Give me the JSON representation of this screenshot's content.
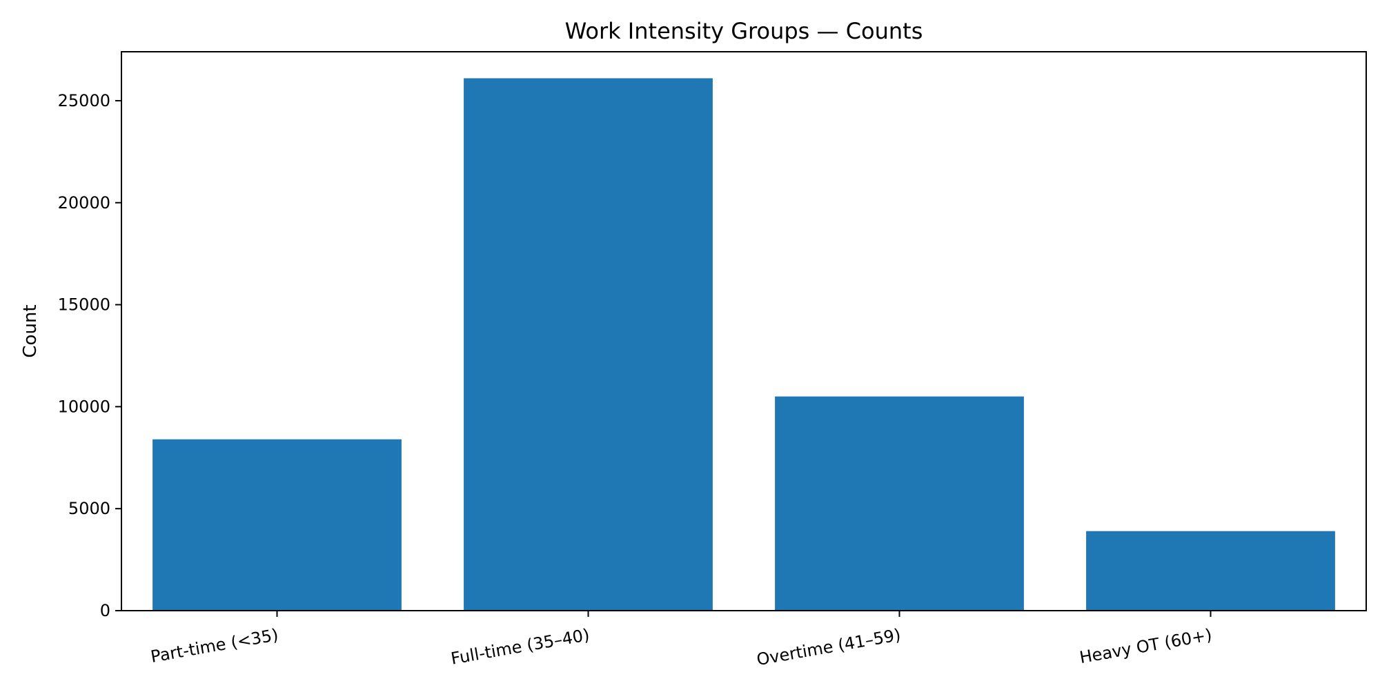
{
  "chart_data": {
    "type": "bar",
    "title": "Work Intensity Groups — Counts",
    "xlabel": "",
    "ylabel": "Count",
    "categories": [
      "Part-time (<35)",
      "Full-time (35–40)",
      "Overtime (41–59)",
      "Heavy OT (60+)"
    ],
    "values": [
      8400,
      26100,
      10500,
      3900
    ],
    "ylim": [
      0,
      27400
    ],
    "yticks": [
      0,
      5000,
      10000,
      15000,
      20000,
      25000
    ],
    "grid": false,
    "legend": "none",
    "bar_color": "#1f77b4"
  }
}
